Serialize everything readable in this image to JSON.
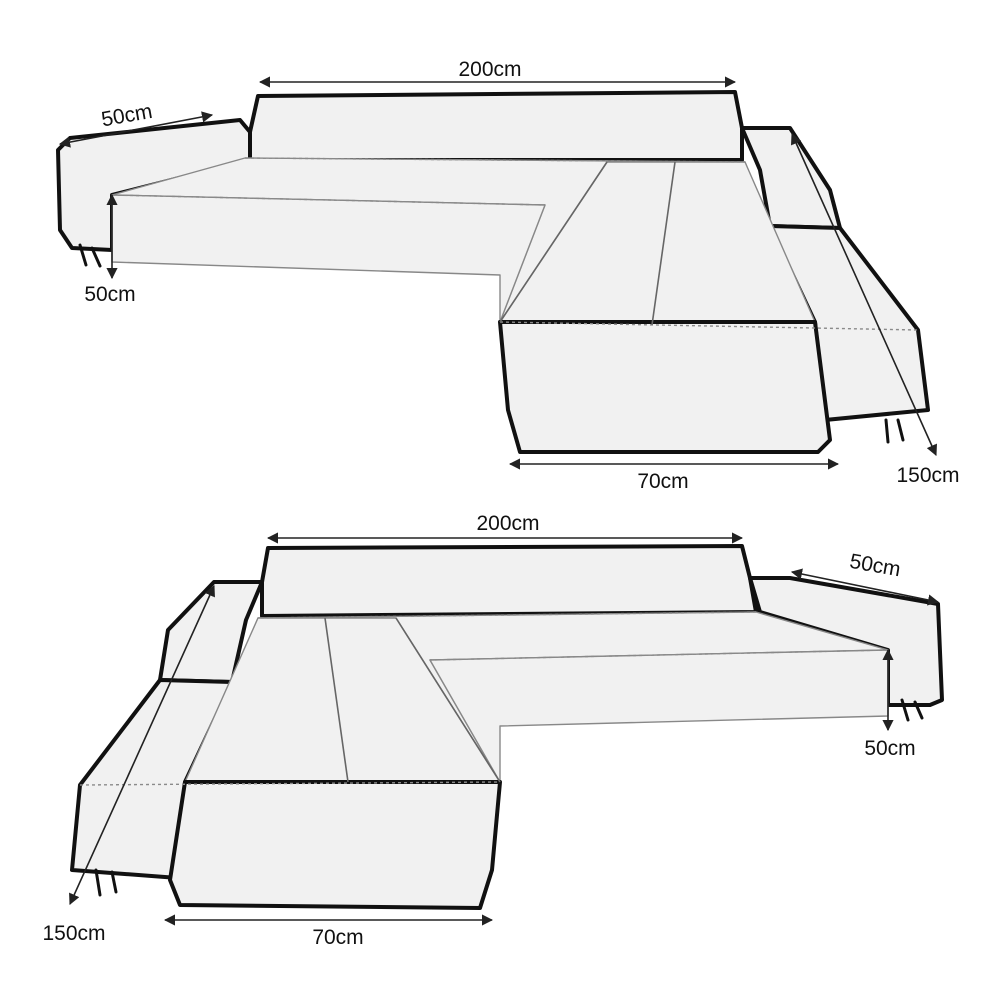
{
  "diagram": {
    "top_sofa": {
      "back_width": "200cm",
      "arm_depth": "50cm",
      "height": "50cm",
      "chaise_width": "70cm",
      "chaise_length": "150cm"
    },
    "bottom_sofa": {
      "back_width": "200cm",
      "arm_depth": "50cm",
      "height": "50cm",
      "chaise_width": "70cm",
      "chaise_length": "150cm"
    }
  },
  "colors": {
    "fabric": "#f1f1f1",
    "outline": "#111111",
    "seam": "#8a8a8a"
  }
}
